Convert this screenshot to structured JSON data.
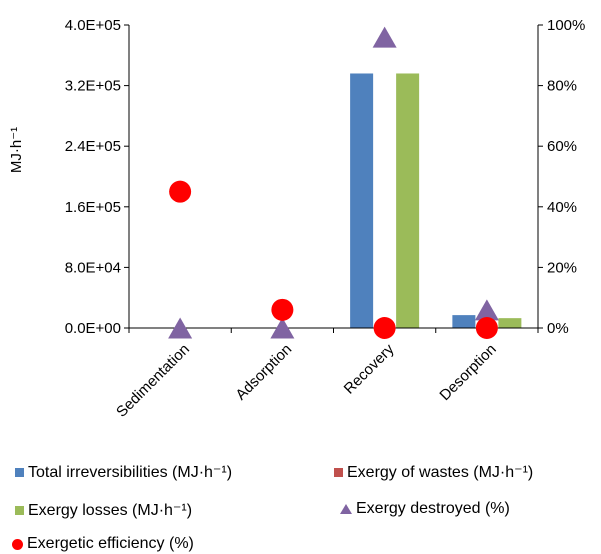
{
  "chart_data": {
    "type": "bar",
    "categories": [
      "Sedimentation",
      "Adsorption",
      "Recovery",
      "Desorption"
    ],
    "ylabel": "MJ·h⁻¹",
    "ylim": [
      0,
      400000
    ],
    "y_ticks": [
      "0.0E+00",
      "8.0E+04",
      "1.6E+05",
      "2.4E+05",
      "3.2E+05",
      "4.0E+05"
    ],
    "y2lim": [
      0,
      100
    ],
    "y2_ticks": [
      "0%",
      "20%",
      "40%",
      "60%",
      "80%",
      "100%"
    ],
    "series": [
      {
        "name": "Total irreversibilities (MJ·h⁻¹)",
        "type": "bar",
        "axis": "left",
        "color": "#4f81bd",
        "values": [
          0,
          0,
          336000,
          17000
        ]
      },
      {
        "name": "Exergy of wastes (MJ·h⁻¹)",
        "type": "bar",
        "axis": "left",
        "color": "#c0504d",
        "values": [
          0,
          0,
          0,
          0
        ]
      },
      {
        "name": "Exergy losses (MJ·h⁻¹)",
        "type": "bar",
        "axis": "left",
        "color": "#9bbb59",
        "values": [
          0,
          0,
          336000,
          13000
        ]
      },
      {
        "name": "Exergy destroyed (%)",
        "type": "marker",
        "marker": "triangle",
        "axis": "right",
        "color": "#8064a2",
        "values": [
          0,
          0,
          96,
          6
        ]
      },
      {
        "name": "Exergetic efficiency (%)",
        "type": "marker",
        "marker": "circle",
        "axis": "right",
        "color": "#ff0000",
        "values": [
          45,
          6,
          0,
          0
        ]
      }
    ],
    "legend_position": "bottom",
    "grid": false
  }
}
